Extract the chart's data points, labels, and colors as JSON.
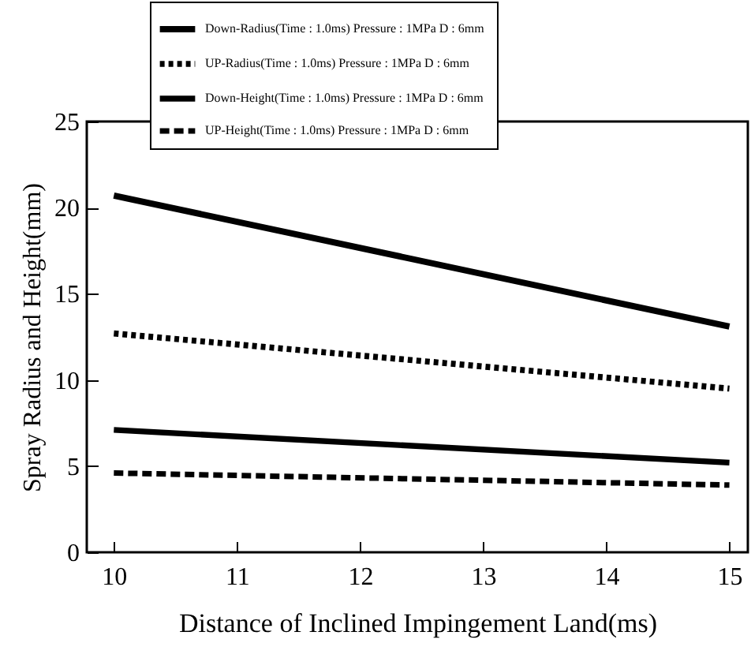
{
  "chart_data": {
    "type": "line",
    "xlabel": "Distance of Inclined Impingement Land(ms)",
    "ylabel": "Spray Radius and Height(mm)",
    "x": [
      10,
      15
    ],
    "series": [
      {
        "name": "Down-Radius(Time : 1.0ms)   Pressure : 1MPa D : 6mm",
        "color": "#000000",
        "line_style": "solid",
        "values": [
          20.7,
          13.1
        ]
      },
      {
        "name": "UP-Radius(Time : 1.0ms)   Pressure : 1MPa D : 6mm",
        "color": "#000000",
        "line_style": "dotted",
        "values": [
          12.7,
          9.5
        ]
      },
      {
        "name": "Down-Height(Time : 1.0ms)   Pressure : 1MPa D : 6mm",
        "color": "#000000",
        "line_style": "solid",
        "values": [
          7.1,
          5.2
        ]
      },
      {
        "name": "UP-Height(Time : 1.0ms)   Pressure : 1MPa D : 6mm",
        "color": "#000000",
        "line_style": "dashed",
        "values": [
          4.6,
          3.9
        ]
      }
    ],
    "xlim": [
      9.78,
      15.15
    ],
    "xticks": [
      10,
      11,
      12,
      13,
      14,
      15
    ],
    "ylim": [
      0,
      25
    ],
    "yticks": [
      0,
      5,
      10,
      15,
      20,
      25
    ],
    "legend": "top",
    "marker": "none"
  }
}
